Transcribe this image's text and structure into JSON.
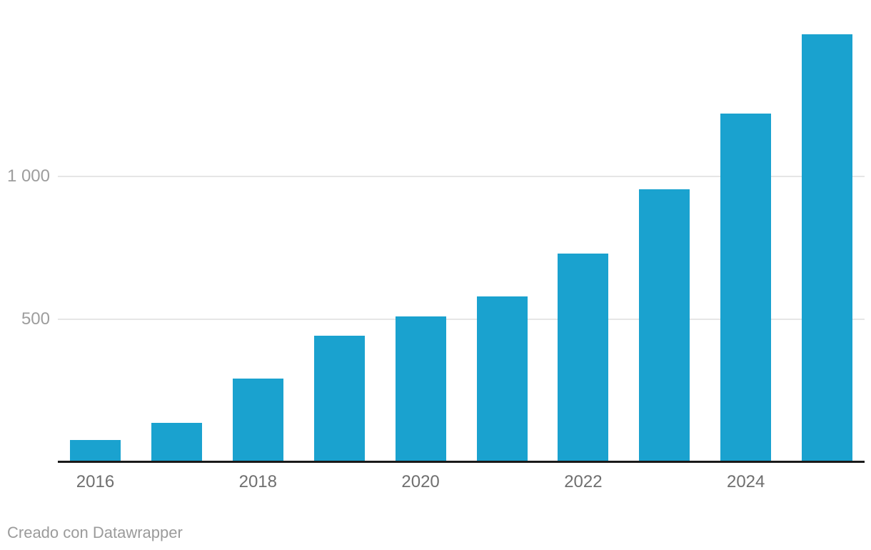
{
  "chart_data": {
    "type": "bar",
    "categories": [
      "2016",
      "2017",
      "2018",
      "2019",
      "2020",
      "2021",
      "2022",
      "2023",
      "2024",
      "2025"
    ],
    "values": [
      75,
      135,
      290,
      440,
      510,
      580,
      730,
      955,
      1220,
      1500
    ],
    "title": "",
    "xlabel": "",
    "ylabel": "",
    "ylim": [
      0,
      1520
    ],
    "grid": "horizontal-only",
    "legend": "none",
    "yticks": [
      {
        "value": 500,
        "label": "500"
      },
      {
        "value": 1000,
        "label": "1 000"
      }
    ],
    "xticks": [
      {
        "index": 0,
        "label": "2016"
      },
      {
        "index": 2,
        "label": "2018"
      },
      {
        "index": 4,
        "label": "2020"
      },
      {
        "index": 6,
        "label": "2022"
      },
      {
        "index": 8,
        "label": "2024"
      }
    ],
    "bar_color": "#1aa2cf"
  },
  "colors": {
    "bar": "#1aa2cf",
    "axis_line": "#1a1a1a",
    "gridline": "#e6e6e6",
    "x_tick_text": "#6f6f6f",
    "y_tick_text": "#9d9d9d",
    "footer_text": "#9b9b9b",
    "background": "#ffffff"
  },
  "footer": {
    "credit": "Creado con Datawrapper"
  }
}
